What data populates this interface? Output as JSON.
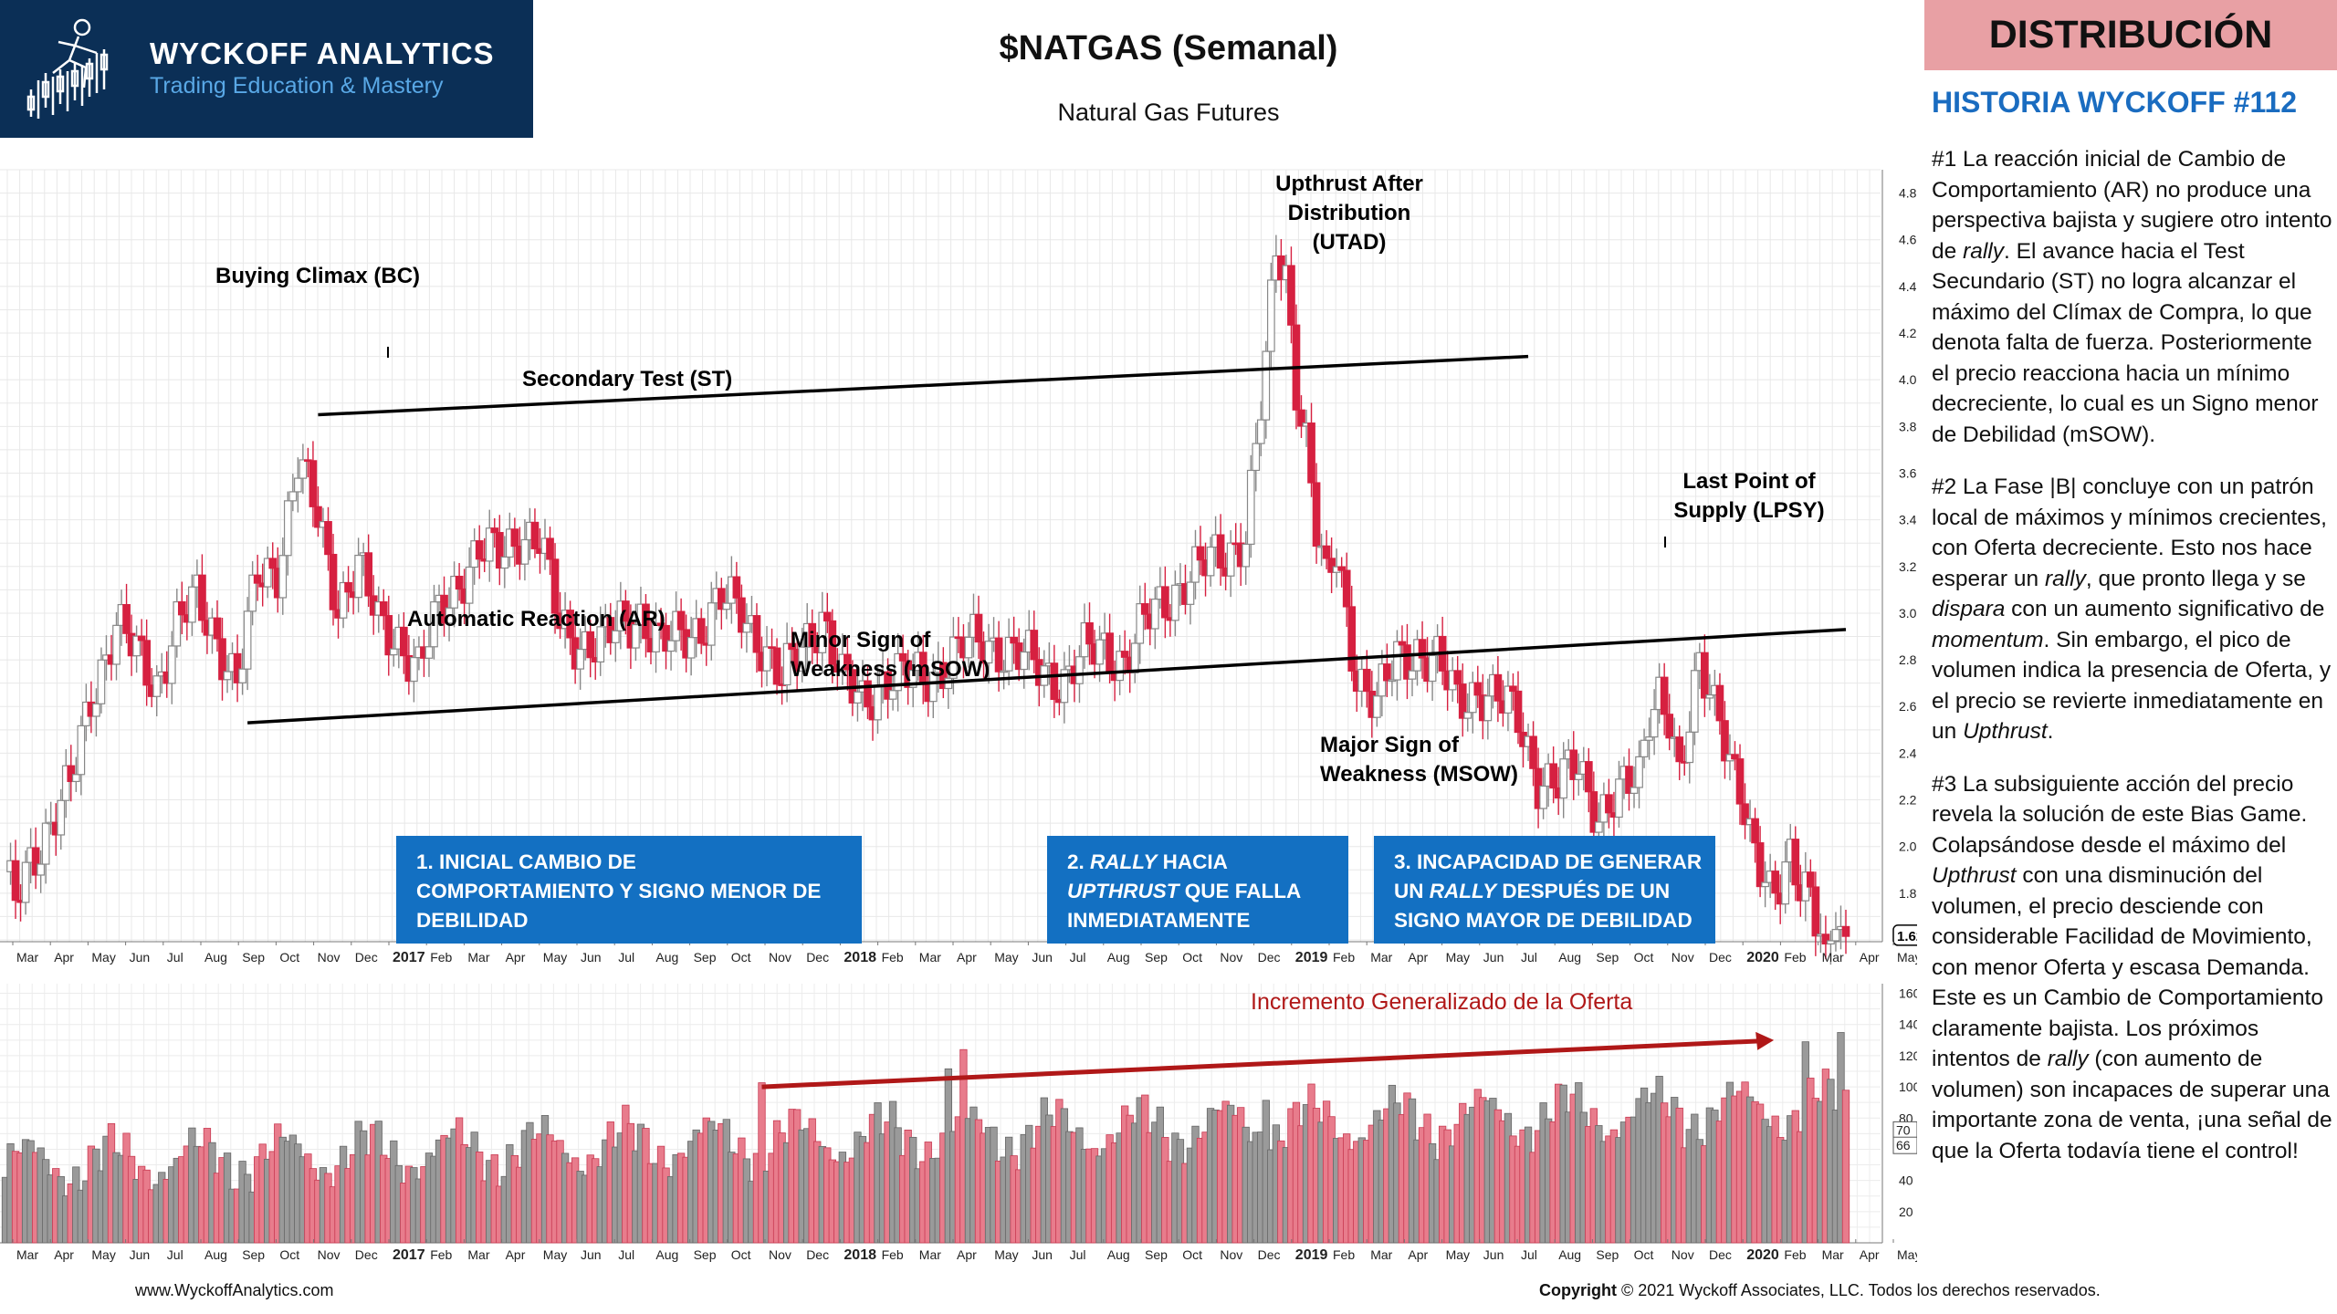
{
  "logo": {
    "title": "WYCKOFF ANALYTICS",
    "subtitle": "Trading Education & Mastery"
  },
  "header": {
    "title": "$NATGAS (Semanal)",
    "subtitle": "Natural Gas Futures",
    "phase_label": "DISTRIBUCIÓN"
  },
  "sidebar": {
    "title": "HISTORIA WYCKOFF #112",
    "paragraphs": [
      "#1 La reacción inicial de Cambio de Comportamiento (AR) no produce una perspectiva bajista y sugiere otro intento de rally.  El avance hacia el Test Secundario (ST) no logra alcanzar el máximo del Clímax de Compra, lo que denota falta de fuerza. Posteriormente el precio reacciona hacia un mínimo decreciente, lo cual es un Signo menor de Debilidad (mSOW).",
      "#2 La Fase |B| concluye con un patrón local de máximos y mínimos crecientes, con Oferta decreciente. Esto nos hace esperar un rally, que pronto llega y se dispara con un aumento significativo de momentum. Sin embargo, el pico de volumen indica la presencia de Oferta, y el precio se revierte inmediatamente en un Upthrust.",
      "#3 La subsiguiente acción del precio revela la solución de este Bias Game. Colapsándose desde el máximo del Upthrust con una disminución del volumen, el precio desciende con considerable Facilidad de Movimiento, con menor Oferta y escasa Demanda. Este es un Cambio de Comportamiento claramente bajista. Los próximos intentos de rally (con aumento de volumen) son incapaces de superar una importante zona de venta, ¡una señal de que la Oferta todavía tiene el control!"
    ]
  },
  "annotations": {
    "bc": "Buying Climax (BC)",
    "st": "Secondary Test (ST)",
    "ar": "Automatic Reaction (AR)",
    "msow": [
      "Minor Sign of",
      "Weakness (mSOW)"
    ],
    "utad": [
      "Upthrust After",
      "Distribution",
      "(UTAD)"
    ],
    "lpsy": [
      "Last Point of",
      "Supply (LPSY)"
    ],
    "major_sow": [
      "Major Sign of",
      "Weakness (MSOW)"
    ],
    "volume_trend": "Incremento Generalizado de la  Oferta"
  },
  "boxes": [
    [
      "1. INICIAL CAMBIO DE",
      "COMPORTAMIENTO Y SIGNO MENOR DE",
      "DEBILIDAD"
    ],
    [
      "2. RALLY HACIA",
      "UPTHRUST QUE FALLA",
      "INMEDIATAMENTE"
    ],
    [
      "3. INCAPACIDAD DE GENERAR",
      "UN RALLY DESPUÉS DE UN",
      "SIGNO MAYOR DE DEBILIDAD"
    ]
  ],
  "footer": {
    "website": "www.WyckoffAnalytics.com",
    "copyright_bold": "Copyright",
    "copyright_rest": " © 2021 Wyckoff Associates, LLC. Todos los derechos  reservados."
  },
  "colors": {
    "up": "#888888",
    "down": "#d62040",
    "box": "#1370c2",
    "trend_arrow": "#b01818",
    "logo_bg": "#0b2f56",
    "header_bg": "#e8a0a4",
    "story_title": "#1a6cc0"
  },
  "chart_data": {
    "type": "candlestick",
    "title": "$NATGAS (Semanal)",
    "subtitle": "Natural Gas Futures",
    "price_axis": {
      "ylim": [
        1.6,
        4.9
      ],
      "ticks": [
        "4.8",
        "4.6",
        "4.4",
        "4.2",
        "4.0",
        "3.8",
        "3.6",
        "3.4",
        "3.2",
        "3.0",
        "2.8",
        "2.6",
        "2.4",
        "2.2",
        "2.0",
        "1.8"
      ],
      "last_price_label": "1.62"
    },
    "volume_axis": {
      "ylim": [
        0,
        165
      ],
      "ticks": [
        "160",
        "140",
        "120",
        "100",
        "80",
        "60",
        "40",
        "20"
      ],
      "marker_labels": [
        "70",
        "66"
      ]
    },
    "month_labels": [
      "Mar",
      "Apr",
      "May",
      "Jun",
      "Jul",
      "Aug",
      "Sep",
      "Oct",
      "Nov",
      "Dec",
      "2017",
      "Feb",
      "Mar",
      "Apr",
      "May",
      "Jun",
      "Jul",
      "Aug",
      "Sep",
      "Oct",
      "Nov",
      "Dec",
      "2018",
      "Feb",
      "Mar",
      "Apr",
      "May",
      "Jun",
      "Jul",
      "Aug",
      "Sep",
      "Oct",
      "Nov",
      "Dec",
      "2019",
      "Feb",
      "Mar",
      "Apr",
      "May",
      "Jun",
      "Jul",
      "Aug",
      "Sep",
      "Oct",
      "Nov",
      "Dec",
      "2020",
      "Feb",
      "Mar",
      "Apr",
      "May"
    ],
    "anchor_closes": [
      [
        0,
        1.85
      ],
      [
        2,
        1.75
      ],
      [
        5,
        1.95
      ],
      [
        9,
        2.1
      ],
      [
        13,
        2.25
      ],
      [
        17,
        2.65
      ],
      [
        22,
        2.95
      ],
      [
        26,
        2.82
      ],
      [
        30,
        2.7
      ],
      [
        34,
        2.95
      ],
      [
        38,
        3.05
      ],
      [
        42,
        2.9
      ],
      [
        46,
        2.7
      ],
      [
        50,
        3.15
      ],
      [
        54,
        3.2
      ],
      [
        58,
        3.65
      ],
      [
        62,
        3.4
      ],
      [
        66,
        3.05
      ],
      [
        70,
        3.2
      ],
      [
        74,
        2.95
      ],
      [
        78,
        2.9
      ],
      [
        82,
        2.75
      ],
      [
        86,
        3.0
      ],
      [
        90,
        3.15
      ],
      [
        94,
        3.25
      ],
      [
        98,
        3.25
      ],
      [
        102,
        3.35
      ],
      [
        106,
        3.3
      ],
      [
        110,
        2.95
      ],
      [
        114,
        2.88
      ],
      [
        118,
        2.85
      ],
      [
        122,
        2.95
      ],
      [
        126,
        3.0
      ],
      [
        130,
        2.85
      ],
      [
        134,
        2.9
      ],
      [
        138,
        2.95
      ],
      [
        142,
        3.05
      ],
      [
        146,
        3.0
      ],
      [
        150,
        2.88
      ],
      [
        154,
        2.7
      ],
      [
        158,
        2.85
      ],
      [
        162,
        3.0
      ],
      [
        166,
        2.7
      ],
      [
        170,
        2.62
      ],
      [
        174,
        2.72
      ],
      [
        178,
        2.72
      ],
      [
        182,
        2.72
      ],
      [
        186,
        2.78
      ],
      [
        190,
        2.85
      ],
      [
        194,
        2.88
      ],
      [
        198,
        2.85
      ],
      [
        202,
        2.8
      ],
      [
        206,
        2.75
      ],
      [
        210,
        2.72
      ],
      [
        214,
        2.82
      ],
      [
        218,
        2.85
      ],
      [
        222,
        2.8
      ],
      [
        226,
        2.95
      ],
      [
        230,
        3.05
      ],
      [
        234,
        3.15
      ],
      [
        238,
        3.2
      ],
      [
        242,
        3.25
      ],
      [
        246,
        3.35
      ],
      [
        248,
        3.7
      ],
      [
        250,
        4.05
      ],
      [
        252,
        4.55
      ],
      [
        254,
        4.45
      ],
      [
        256,
        4.0
      ],
      [
        258,
        3.75
      ],
      [
        260,
        3.35
      ],
      [
        262,
        3.1
      ],
      [
        264,
        3.25
      ],
      [
        266,
        3.0
      ],
      [
        268,
        2.75
      ],
      [
        272,
        2.6
      ],
      [
        276,
        2.8
      ],
      [
        280,
        2.85
      ],
      [
        284,
        2.78
      ],
      [
        288,
        2.62
      ],
      [
        292,
        2.68
      ],
      [
        296,
        2.62
      ],
      [
        300,
        2.55
      ],
      [
        304,
        2.3
      ],
      [
        308,
        2.25
      ],
      [
        312,
        2.35
      ],
      [
        316,
        2.15
      ],
      [
        320,
        2.2
      ],
      [
        324,
        2.3
      ],
      [
        326,
        2.6
      ],
      [
        328,
        2.68
      ],
      [
        330,
        2.55
      ],
      [
        332,
        2.25
      ],
      [
        334,
        2.5
      ],
      [
        336,
        2.8
      ],
      [
        338,
        2.7
      ],
      [
        340,
        2.6
      ],
      [
        342,
        2.35
      ],
      [
        344,
        2.2
      ],
      [
        346,
        2.0
      ],
      [
        348,
        1.92
      ],
      [
        350,
        1.85
      ],
      [
        352,
        1.88
      ],
      [
        354,
        1.95
      ],
      [
        356,
        1.78
      ],
      [
        358,
        1.75
      ],
      [
        360,
        1.62
      ]
    ],
    "trendlines": [
      {
        "name": "resistance",
        "from": [
          62,
          3.85
        ],
        "to": [
          302,
          4.1
        ]
      },
      {
        "name": "support",
        "from": [
          48,
          2.53
        ],
        "to": [
          365,
          2.93
        ]
      }
    ],
    "volume_trend_arrow": {
      "from": [
        150,
        100
      ],
      "to": [
        350,
        130
      ]
    }
  }
}
